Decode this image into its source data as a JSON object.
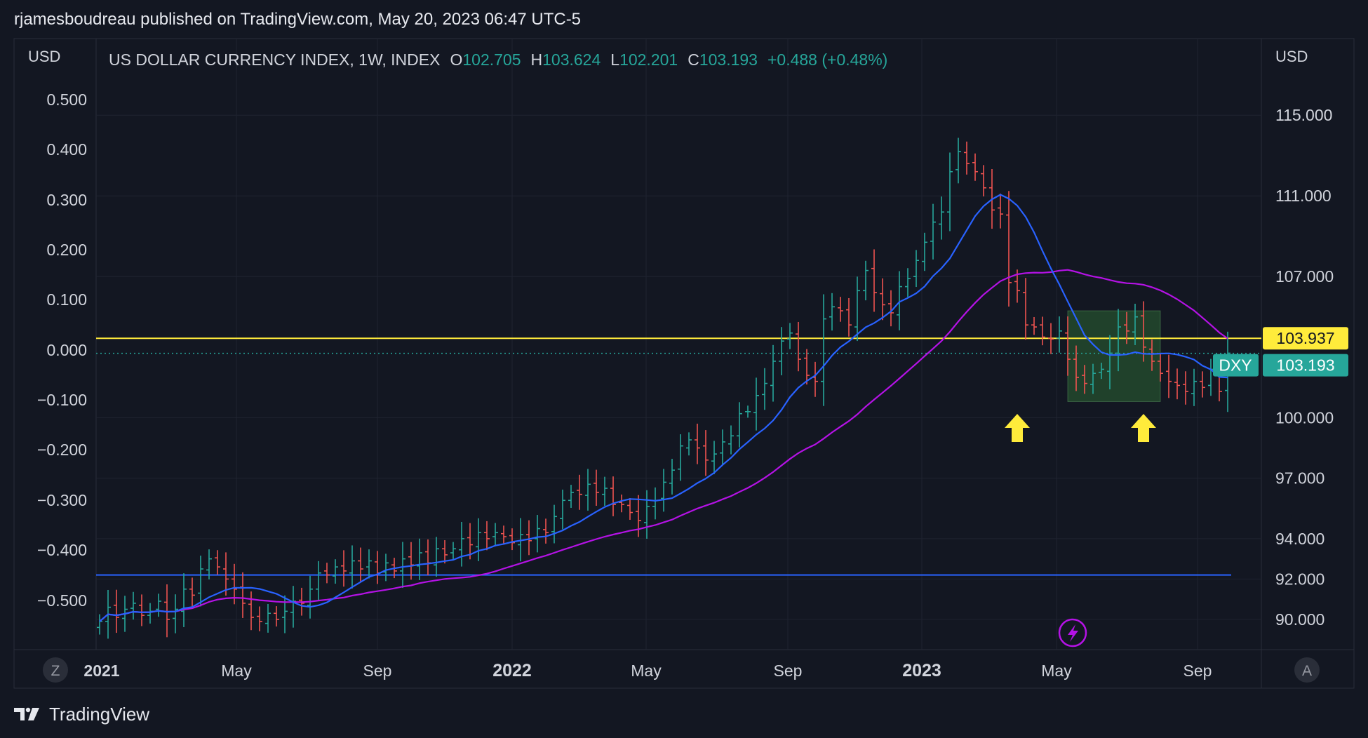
{
  "header": {
    "published": "rjamesboudreau published on TradingView.com, May 20, 2023 06:47 UTC-5"
  },
  "legend": {
    "title": "US DOLLAR CURRENCY INDEX, 1W, INDEX",
    "o_label": "O",
    "o_value": "102.705",
    "h_label": "H",
    "h_value": "103.624",
    "l_label": "L",
    "l_value": "102.201",
    "c_label": "C",
    "c_value": "103.193",
    "change": "+0.488 (+0.48%)"
  },
  "axes": {
    "left_currency": "USD",
    "right_currency": "USD",
    "left_ticks": [
      "0.500",
      "0.400",
      "0.300",
      "0.200",
      "0.100",
      "0.000",
      "−0.100",
      "−0.200",
      "−0.300",
      "−0.400",
      "−0.500"
    ],
    "right_ticks": [
      "115.000",
      "111.000",
      "107.000",
      "100.000",
      "97.000",
      "94.000",
      "92.000",
      "90.000"
    ],
    "x_ticks": [
      "2021",
      "May",
      "Sep",
      "2022",
      "May",
      "Sep",
      "2023",
      "May",
      "Sep"
    ],
    "z_button": "Z",
    "a_button": "A"
  },
  "price_labels": {
    "yellow_line_value": "103.937",
    "dxy_symbol": "DXY",
    "dxy_value": "103.193"
  },
  "colors": {
    "background": "#131722",
    "up": "#26a69a",
    "down": "#ef5350",
    "ma_short": "#2962ff",
    "ma_long": "#b512e6",
    "yellow": "#ffeb3b",
    "support": "#2962ff"
  },
  "footer": {
    "brand": "TradingView"
  },
  "chart_data": {
    "type": "ohlc",
    "title": "US DOLLAR CURRENCY INDEX, 1W, INDEX",
    "ylim": [
      88.5,
      118.8
    ],
    "ylabel": "USD",
    "x_ticks": [
      "2021",
      "May",
      "Sep",
      "2022",
      "May",
      "Sep",
      "2023",
      "May",
      "Sep"
    ],
    "horizontal_lines": [
      {
        "name": "resistance",
        "value": 103.937,
        "color": "#ffeb3b"
      },
      {
        "name": "support",
        "value": 92.2,
        "color": "#2962ff"
      }
    ],
    "current_price": 103.193,
    "highlight_box": {
      "week_start": 115,
      "week_end": 126,
      "price_low": 100.8,
      "price_high": 105.3
    },
    "arrows": [
      {
        "week": 109
      },
      {
        "week": 124
      }
    ],
    "closes": [
      89.9,
      90.6,
      90.1,
      90.5,
      90.8,
      90.2,
      90.4,
      90.9,
      90.0,
      90.5,
      91.5,
      91.2,
      92.5,
      93.0,
      92.6,
      92.0,
      91.5,
      90.8,
      90.1,
      89.9,
      90.3,
      90.0,
      90.4,
      90.9,
      90.8,
      91.5,
      92.3,
      92.2,
      92.6,
      92.4,
      92.9,
      92.5,
      92.9,
      92.3,
      92.8,
      92.4,
      93.0,
      92.7,
      93.3,
      92.8,
      93.5,
      93.2,
      93.5,
      94.0,
      93.7,
      94.3,
      94.0,
      94.3,
      94.1,
      93.8,
      94.2,
      93.9,
      94.5,
      94.3,
      95.1,
      95.9,
      96.3,
      96.2,
      96.7,
      96.3,
      96.5,
      95.7,
      95.7,
      95.3,
      94.9,
      95.6,
      95.9,
      96.8,
      97.4,
      98.6,
      98.9,
      98.5,
      97.9,
      98.2,
      98.8,
      99.1,
      100.2,
      100.3,
      101.1,
      101.7,
      102.8,
      103.8,
      104.2,
      102.9,
      102.1,
      101.8,
      104.9,
      105.5,
      105.3,
      104.6,
      106.3,
      107.3,
      106.2,
      105.6,
      105.2,
      106.5,
      106.9,
      107.8,
      108.7,
      109.7,
      110.2,
      112.2,
      113.2,
      112.6,
      112.2,
      111.4,
      110.3,
      110.1,
      106.7,
      106.3,
      104.6,
      104.5,
      104.0,
      103.9,
      104.3,
      102.9,
      102.0,
      101.7,
      102.2,
      102.4,
      103.2,
      104.5,
      104.3,
      105.0,
      103.5,
      102.8,
      102.2,
      101.8,
      101.6,
      101.3,
      101.8,
      101.5,
      102.4,
      101.3,
      103.2
    ],
    "series_notes": "weekly OHLC bars with short (blue) and long (purple) moving averages"
  }
}
